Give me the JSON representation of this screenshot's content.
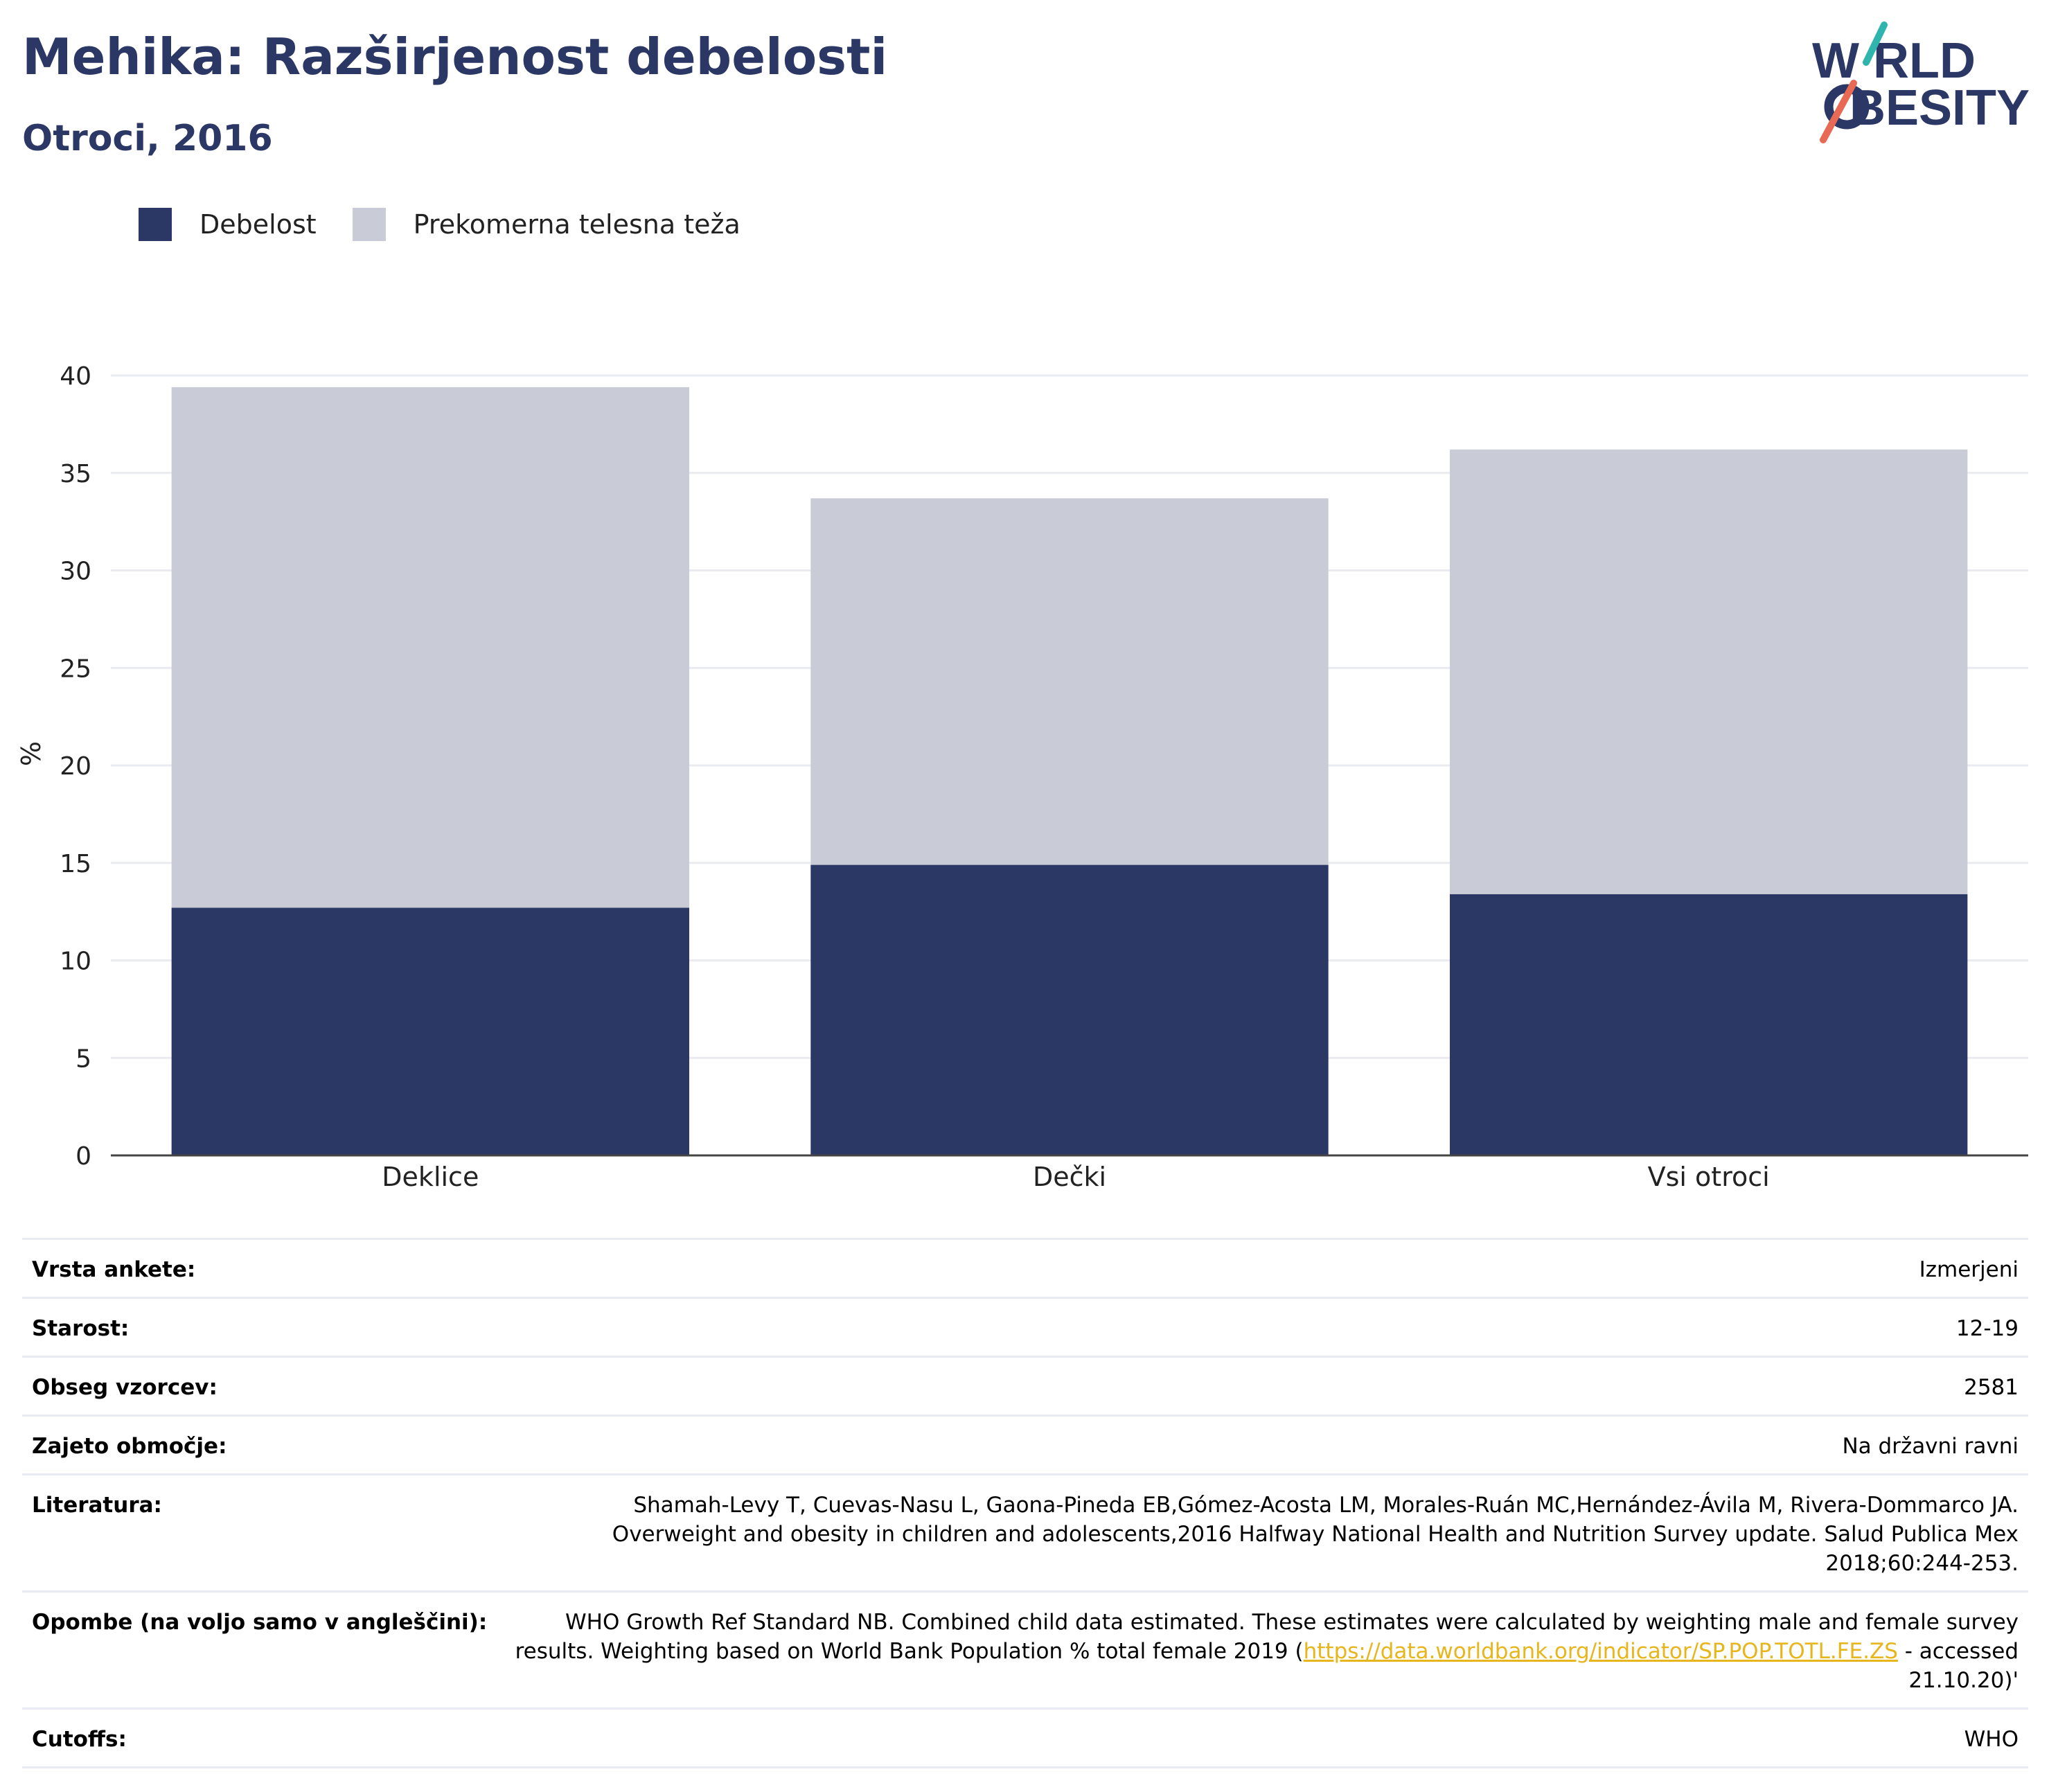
{
  "header": {
    "title": "Mehika: Razširjenost debelosti",
    "subtitle": "Otroci, 2016"
  },
  "logo": {
    "line1": "W RLD",
    "line2": "BESITY",
    "text": "WORLD OBESITY"
  },
  "colors": {
    "obesity": "#2b3764",
    "overweight": "#c9cbd7",
    "title": "#2b3764",
    "link": "#e7b51c",
    "logo_teal": "#2fb5ad",
    "logo_coral": "#e86a55"
  },
  "legend": [
    {
      "label": "Debelost",
      "color": "#2b3764"
    },
    {
      "label": "Prekomerna telesna teža",
      "color": "#c9cbd7"
    }
  ],
  "chart_data": {
    "type": "bar",
    "stacked": true,
    "categories": [
      "Deklice",
      "Dečki",
      "Vsi otroci"
    ],
    "series": [
      {
        "name": "Debelost",
        "values": [
          12.7,
          14.9,
          13.4
        ]
      },
      {
        "name": "Prekomerna telesna teža",
        "values": [
          26.7,
          18.8,
          22.8
        ]
      }
    ],
    "ylabel": "%",
    "ylim": [
      0,
      40
    ],
    "yticks": [
      0,
      5,
      10,
      15,
      20,
      25,
      30,
      35,
      40
    ],
    "grid": true,
    "legend_position": "top-left"
  },
  "info": {
    "rows": [
      {
        "label": "Vrsta ankete:",
        "value": "Izmerjeni"
      },
      {
        "label": "Starost:",
        "value": "12-19"
      },
      {
        "label": "Obseg vzorcev:",
        "value": "2581"
      },
      {
        "label": "Zajeto območje:",
        "value": "Na državni ravni"
      },
      {
        "label": "Literatura:",
        "value": "Shamah-Levy T, Cuevas-Nasu L, Gaona-Pineda EB,Gómez-Acosta LM, Morales-Ruán MC,Hernández-Ávila M, Rivera-Dommarco JA. Overweight and obesity in children and adolescents,2016 Halfway National Health and Nutrition Survey update. Salud Publica Mex 2018;60:244-253."
      }
    ],
    "notes": {
      "label": "Opombe (na voljo samo v angleščini):",
      "before": "WHO Growth Ref Standard NB. Combined child data estimated. These estimates were calculated by weighting male and female survey results. Weighting based on World Bank Population % total female 2019 (",
      "link": "https://data.worldbank.org/indicator/SP.POP.TOTL.FE.ZS",
      "after": " - accessed 21.10.20)'"
    },
    "cutoffs": {
      "label": "Cutoffs:",
      "value": "WHO"
    }
  }
}
